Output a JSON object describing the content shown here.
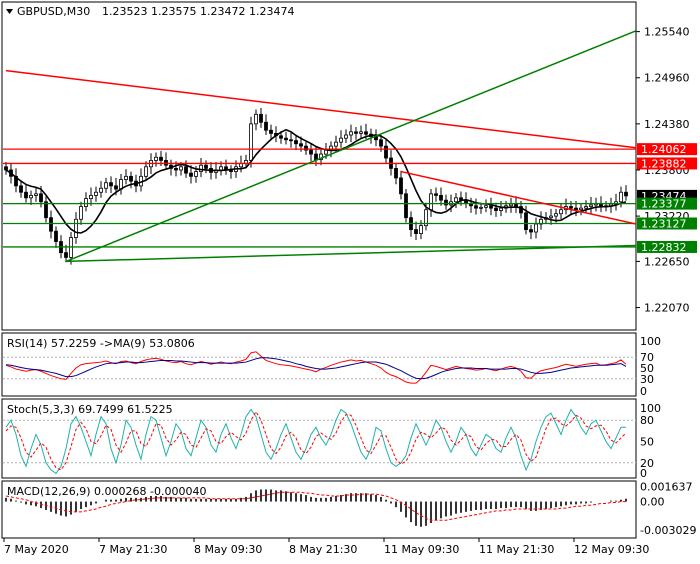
{
  "header": {
    "symbol": "GBPUSD,M30",
    "ohlc": "1.23523 1.23575 1.23472 1.23474"
  },
  "colors": {
    "up": "#000000",
    "down": "#000000",
    "candle_fill_up": "#ffffff",
    "red_line": "#ff0000",
    "green_line": "#008000",
    "ma": "#000000",
    "price_badge": "#000000",
    "grid": "#c0c0c0"
  },
  "chart_data": [
    {
      "type": "candlestick",
      "panel": "price",
      "title": "GBPUSD,M30",
      "ylim": [
        1.218,
        1.259
      ],
      "y_ticks": [
        "1.25540",
        "1.24960",
        "1.24380",
        "1.23800",
        "1.23220",
        "1.22650",
        "1.22070"
      ],
      "x_ticks": [
        "7 May 2020",
        "7 May 21:30",
        "8 May 09:30",
        "8 May 21:30",
        "11 May 09:30",
        "11 May 21:30",
        "12 May 09:30"
      ],
      "current_price": "1.23474",
      "level_badges": [
        {
          "label": "1.24062",
          "value": 1.24062,
          "color": "#ff0000"
        },
        {
          "label": "1.23882",
          "value": 1.23882,
          "color": "#ff0000"
        },
        {
          "label": "1.23377",
          "value": 1.23377,
          "color": "#008000"
        },
        {
          "label": "1.23127",
          "value": 1.23127,
          "color": "#008000"
        },
        {
          "label": "1.22832",
          "value": 1.22832,
          "color": "#008000"
        }
      ],
      "trendlines": [
        {
          "color": "#ff0000",
          "from": [
            0,
            1.2505
          ],
          "to": [
            124,
            1.2408
          ]
        },
        {
          "color": "#ff0000",
          "from": [
            79,
            1.2378
          ],
          "to": [
            124,
            1.2312
          ]
        },
        {
          "color": "#008000",
          "from": [
            12,
            1.2265
          ],
          "to": [
            124,
            1.2555
          ]
        },
        {
          "color": "#008000",
          "from": [
            12,
            1.2265
          ],
          "to": [
            124,
            1.2285
          ]
        }
      ],
      "candles_close": [
        1.238,
        1.2372,
        1.236,
        1.2352,
        1.2345,
        1.2348,
        1.235,
        1.234,
        1.232,
        1.2303,
        1.229,
        1.2276,
        1.227,
        1.2295,
        1.2318,
        1.2334,
        1.2344,
        1.2348,
        1.2352,
        1.2357,
        1.2364,
        1.236,
        1.2356,
        1.2368,
        1.2372,
        1.2366,
        1.236,
        1.2372,
        1.2384,
        1.2392,
        1.2396,
        1.2392,
        1.2386,
        1.2382,
        1.238,
        1.2384,
        1.2376,
        1.2372,
        1.2378,
        1.2386,
        1.2382,
        1.2377,
        1.238,
        1.2384,
        1.238,
        1.2378,
        1.2384,
        1.2388,
        1.2392,
        1.2438,
        1.245,
        1.244,
        1.243,
        1.2426,
        1.2423,
        1.242,
        1.2418,
        1.2417,
        1.2413,
        1.241,
        1.2405,
        1.24,
        1.2393,
        1.24,
        1.2405,
        1.241,
        1.2415,
        1.242,
        1.2424,
        1.2428,
        1.2426,
        1.2428,
        1.2425,
        1.2422,
        1.2418,
        1.241,
        1.2395,
        1.2382,
        1.237,
        1.235,
        1.232,
        1.2305,
        1.23,
        1.231,
        1.233,
        1.235,
        1.2348,
        1.2342,
        1.2336,
        1.234,
        1.2345,
        1.2342,
        1.2338,
        1.2335,
        1.2332,
        1.2333,
        1.2335,
        1.2332,
        1.2329,
        1.2332,
        1.2335,
        1.2337,
        1.2334,
        1.2326,
        1.2305,
        1.2302,
        1.2312,
        1.2318,
        1.232,
        1.2322,
        1.2325,
        1.233,
        1.2334,
        1.2332,
        1.233,
        1.2332,
        1.2334,
        1.2336,
        1.2338,
        1.2334,
        1.2335,
        1.2337,
        1.234,
        1.2352,
        1.23474
      ]
    },
    {
      "type": "line",
      "panel": "rsi",
      "title": "RSI(14) 57.2259 ->MA(9) 53.0806",
      "ylim": [
        0,
        100
      ],
      "y_ticks": [
        "70",
        "50",
        "30",
        "0"
      ],
      "y_top_label": "100",
      "levels": [
        70,
        30
      ],
      "series": [
        {
          "color": "#ff0000",
          "values": [
            55,
            52,
            48,
            46,
            44,
            46,
            47,
            44,
            40,
            36,
            33,
            30,
            29,
            40,
            50,
            56,
            58,
            59,
            60,
            61,
            63,
            60,
            58,
            62,
            63,
            60,
            58,
            62,
            65,
            67,
            68,
            66,
            63,
            61,
            60,
            62,
            58,
            56,
            59,
            62,
            60,
            57,
            59,
            61,
            59,
            58,
            61,
            63,
            66,
            78,
            80,
            72,
            64,
            61,
            58,
            56,
            55,
            54,
            52,
            50,
            48,
            46,
            43,
            48,
            51,
            55,
            58,
            61,
            63,
            65,
            63,
            64,
            61,
            58,
            55,
            50,
            42,
            37,
            34,
            29,
            24,
            22,
            22,
            30,
            42,
            55,
            53,
            50,
            47,
            50,
            53,
            51,
            49,
            48,
            46,
            47,
            49,
            47,
            45,
            48,
            51,
            53,
            50,
            44,
            32,
            31,
            40,
            45,
            47,
            49,
            51,
            54,
            57,
            55,
            53,
            55,
            57,
            58,
            59,
            55,
            56,
            58,
            60,
            65,
            57
          ]
        },
        {
          "color": "#00008b",
          "values": [
            56,
            55,
            53,
            51,
            49,
            48,
            47,
            46,
            44,
            42,
            40,
            37,
            34,
            34,
            36,
            40,
            44,
            48,
            52,
            55,
            58,
            59,
            59,
            60,
            61,
            61,
            60,
            60,
            61,
            62,
            63,
            64,
            64,
            64,
            63,
            63,
            62,
            61,
            60,
            60,
            60,
            59,
            59,
            59,
            59,
            59,
            59,
            60,
            61,
            64,
            67,
            69,
            69,
            68,
            67,
            65,
            63,
            61,
            58,
            56,
            53,
            51,
            49,
            48,
            48,
            49,
            50,
            52,
            54,
            56,
            58,
            60,
            61,
            61,
            61,
            59,
            57,
            53,
            49,
            45,
            40,
            35,
            31,
            30,
            31,
            34,
            38,
            42,
            45,
            47,
            49,
            50,
            50,
            50,
            49,
            49,
            49,
            48,
            48,
            48,
            48,
            49,
            49,
            48,
            45,
            42,
            40,
            40,
            41,
            42,
            44,
            46,
            48,
            50,
            51,
            52,
            53,
            54,
            55,
            55,
            55,
            56,
            57,
            58,
            53
          ]
        }
      ]
    },
    {
      "type": "line",
      "panel": "stoch",
      "title": "Stoch(5,3,3) 69.7499 61.5225",
      "ylim": [
        0,
        100
      ],
      "y_ticks": [
        "100",
        "80",
        "50",
        "20",
        "0"
      ],
      "levels": [
        80,
        20
      ],
      "series": [
        {
          "color": "#20b2aa",
          "values": [
            70,
            80,
            60,
            30,
            15,
            40,
            60,
            45,
            20,
            10,
            5,
            15,
            40,
            75,
            85,
            70,
            50,
            30,
            60,
            85,
            75,
            40,
            20,
            45,
            80,
            70,
            45,
            25,
            60,
            85,
            80,
            55,
            30,
            50,
            75,
            65,
            40,
            30,
            55,
            80,
            70,
            45,
            35,
            60,
            75,
            55,
            40,
            60,
            85,
            95,
            85,
            60,
            35,
            25,
            40,
            60,
            75,
            55,
            35,
            25,
            40,
            60,
            70,
            55,
            45,
            60,
            80,
            95,
            90,
            75,
            55,
            35,
            25,
            40,
            70,
            65,
            40,
            20,
            15,
            20,
            30,
            55,
            75,
            60,
            45,
            60,
            80,
            70,
            50,
            35,
            50,
            70,
            60,
            40,
            30,
            45,
            60,
            55,
            40,
            35,
            55,
            70,
            55,
            30,
            10,
            25,
            50,
            70,
            85,
            90,
            75,
            60,
            80,
            95,
            85,
            70,
            60,
            75,
            80,
            65,
            50,
            40,
            55,
            70,
            70
          ]
        },
        {
          "color": "#ff0000",
          "values": [
            65,
            72,
            70,
            55,
            35,
            28,
            38,
            48,
            42,
            25,
            13,
            10,
            20,
            43,
            67,
            77,
            68,
            50,
            47,
            58,
            73,
            67,
            45,
            35,
            48,
            65,
            65,
            47,
            43,
            57,
            75,
            73,
            55,
            45,
            52,
            63,
            60,
            45,
            42,
            55,
            68,
            65,
            50,
            47,
            57,
            63,
            57,
            52,
            62,
            80,
            92,
            80,
            60,
            40,
            33,
            42,
            58,
            63,
            55,
            38,
            33,
            42,
            57,
            62,
            57,
            53,
            62,
            78,
            88,
            87,
            73,
            55,
            38,
            33,
            45,
            58,
            58,
            42,
            25,
            18,
            22,
            35,
            53,
            63,
            60,
            55,
            62,
            70,
            67,
            52,
            45,
            52,
            60,
            57,
            43,
            38,
            47,
            53,
            52,
            43,
            43,
            53,
            60,
            52,
            32,
            22,
            28,
            48,
            68,
            82,
            83,
            75,
            72,
            78,
            87,
            83,
            72,
            68,
            72,
            73,
            65,
            52,
            48,
            55,
            62
          ]
        }
      ]
    },
    {
      "type": "bar",
      "panel": "macd",
      "title": "MACD(12,26,9) 0.000268 -0.000040",
      "ylim": [
        -0.0038,
        0.0021
      ],
      "y_ticks": [
        "0.001637",
        "0.00",
        "-0.003029"
      ],
      "histogram": [
        0.0004,
        0.0003,
        0.0001,
        -0.0001,
        -0.0003,
        -0.0004,
        -0.0005,
        -0.0007,
        -0.0009,
        -0.0011,
        -0.0013,
        -0.0015,
        -0.0016,
        -0.0014,
        -0.0011,
        -0.0008,
        -0.0006,
        -0.0004,
        -0.0002,
        0,
        0.0002,
        0.0002,
        0.0002,
        0.0003,
        0.0004,
        0.0004,
        0.0004,
        0.0004,
        0.0005,
        0.0006,
        0.0006,
        0.0006,
        0.0005,
        0.0005,
        0.0004,
        0.0004,
        0.0004,
        0.0003,
        0.0003,
        0.0003,
        0.0003,
        0.0003,
        0.0003,
        0.0003,
        0.0003,
        0.0003,
        0.0003,
        0.0004,
        0.0005,
        0.0009,
        0.0012,
        0.0013,
        0.0013,
        0.0013,
        0.0012,
        0.0012,
        0.0011,
        0.001,
        0.0009,
        0.0008,
        0.0007,
        0.0005,
        0.0004,
        0.0004,
        0.0004,
        0.0005,
        0.0006,
        0.0007,
        0.0008,
        0.0009,
        0.0009,
        0.0009,
        0.0009,
        0.0008,
        0.0007,
        0.0005,
        0.0002,
        -0.0002,
        -0.0006,
        -0.0011,
        -0.0017,
        -0.0022,
        -0.0026,
        -0.0027,
        -0.0026,
        -0.0023,
        -0.002,
        -0.0018,
        -0.0016,
        -0.0015,
        -0.0013,
        -0.0012,
        -0.0011,
        -0.001,
        -0.0009,
        -0.0009,
        -0.0008,
        -0.0008,
        -0.0008,
        -0.0007,
        -0.0007,
        -0.0006,
        -0.0006,
        -0.0006,
        -0.0008,
        -0.001,
        -0.001,
        -0.0009,
        -0.0008,
        -0.0007,
        -0.0006,
        -0.0005,
        -0.0004,
        -0.0003,
        -0.0003,
        -0.0002,
        -0.0002,
        -0.0001,
        0,
        0,
        0,
        0.0001,
        0.0001,
        0.0002,
        0.0003
      ],
      "signal": [
        0.0006,
        0.0005,
        0.0004,
        0.0003,
        0.0002,
        0,
        -0.0001,
        -0.0003,
        -0.0004,
        -0.0006,
        -0.0007,
        -0.0009,
        -0.001,
        -0.0011,
        -0.0011,
        -0.0011,
        -0.001,
        -0.0009,
        -0.0008,
        -0.0006,
        -0.0005,
        -0.0003,
        -0.0002,
        -0.0001,
        0,
        0.0001,
        0.0002,
        0.0002,
        0.0003,
        0.0003,
        0.0004,
        0.0004,
        0.0004,
        0.0004,
        0.0004,
        0.0004,
        0.0004,
        0.0004,
        0.0004,
        0.0004,
        0.0004,
        0.0003,
        0.0003,
        0.0003,
        0.0003,
        0.0003,
        0.0003,
        0.0003,
        0.0003,
        0.0004,
        0.0005,
        0.0006,
        0.0007,
        0.0008,
        0.0009,
        0.001,
        0.001,
        0.001,
        0.001,
        0.001,
        0.0009,
        0.0009,
        0.0008,
        0.0007,
        0.0007,
        0.0006,
        0.0006,
        0.0006,
        0.0007,
        0.0007,
        0.0007,
        0.0008,
        0.0008,
        0.0008,
        0.0008,
        0.0007,
        0.0006,
        0.0004,
        0.0002,
        -0.0001,
        -0.0004,
        -0.0008,
        -0.0012,
        -0.0015,
        -0.0018,
        -0.002,
        -0.002,
        -0.002,
        -0.002,
        -0.0019,
        -0.0018,
        -0.0017,
        -0.0016,
        -0.0015,
        -0.0014,
        -0.0013,
        -0.0012,
        -0.0011,
        -0.001,
        -0.001,
        -0.0009,
        -0.0009,
        -0.0008,
        -0.0008,
        -0.0008,
        -0.0008,
        -0.0008,
        -0.0008,
        -0.0008,
        -0.0008,
        -0.0008,
        -0.0007,
        -0.0007,
        -0.0006,
        -0.0005,
        -0.0005,
        -0.0004,
        -0.0004,
        -0.0003,
        -0.0002,
        -0.0002,
        -0.0001,
        -0.0001,
        0,
        0
      ]
    }
  ]
}
